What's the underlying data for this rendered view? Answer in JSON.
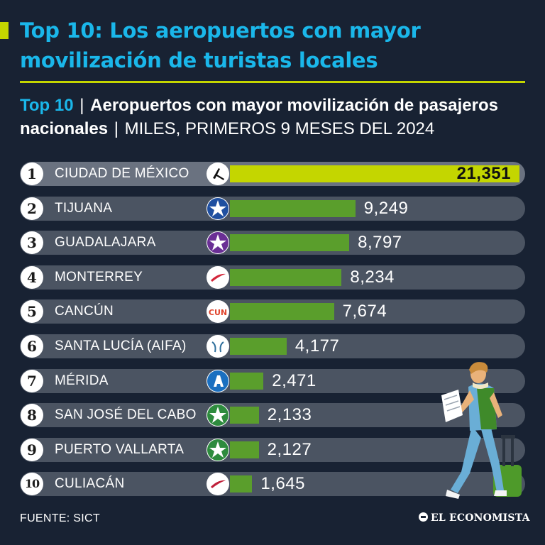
{
  "header": {
    "title": "Top 10: Los aeropuertos con mayor movilización de turistas locales"
  },
  "subtitle": {
    "highlight": "Top 10",
    "bold_text": "Aeropuertos con mayor movilización de pasajeros nacionales",
    "units": "MILES, PRIMEROS 9 MESES DEL 2024"
  },
  "colors": {
    "background": "#182233",
    "title": "#1ab7ea",
    "top_bar": "#c4d600",
    "bar": "#5a9e2c",
    "track": "#4b5462"
  },
  "chart_data": {
    "type": "bar",
    "orientation": "horizontal",
    "title": "Aeropuertos con mayor movilización de pasajeros nacionales",
    "units": "MILES, PRIMEROS 9 MESES DEL 2024",
    "categories": [
      "CIUDAD DE MÉXICO",
      "TIJUANA",
      "GUADALAJARA",
      "MONTERREY",
      "CANCÚN",
      "SANTA LUCÍA (AIFA)",
      "MÉRIDA",
      "SAN JOSÉ DEL CABO",
      "PUERTO VALLARTA",
      "CULIACÁN"
    ],
    "values": [
      21351,
      9249,
      8797,
      8234,
      7674,
      4177,
      2471,
      2133,
      2127,
      1645
    ],
    "value_labels": [
      "21,351",
      "9,249",
      "8,797",
      "8,234",
      "7,674",
      "4,177",
      "2,471",
      "2,133",
      "2,127",
      "1,645"
    ],
    "ranks": [
      "1",
      "2",
      "3",
      "4",
      "5",
      "6",
      "7",
      "8",
      "9",
      "10"
    ],
    "logos": [
      "aicm-icon",
      "tijuana-star-icon",
      "guadalajara-star-icon",
      "monterrey-swoosh-icon",
      "cun-logo-icon",
      "aifa-mammoth-icon",
      "merida-a-icon",
      "cabo-star-icon",
      "vallarta-star-icon",
      "culiacan-swoosh-icon"
    ],
    "xlim": [
      0,
      21351
    ]
  },
  "footer": {
    "source": "FUENTE: SICT",
    "brand": "EL ECONOMISTA"
  }
}
